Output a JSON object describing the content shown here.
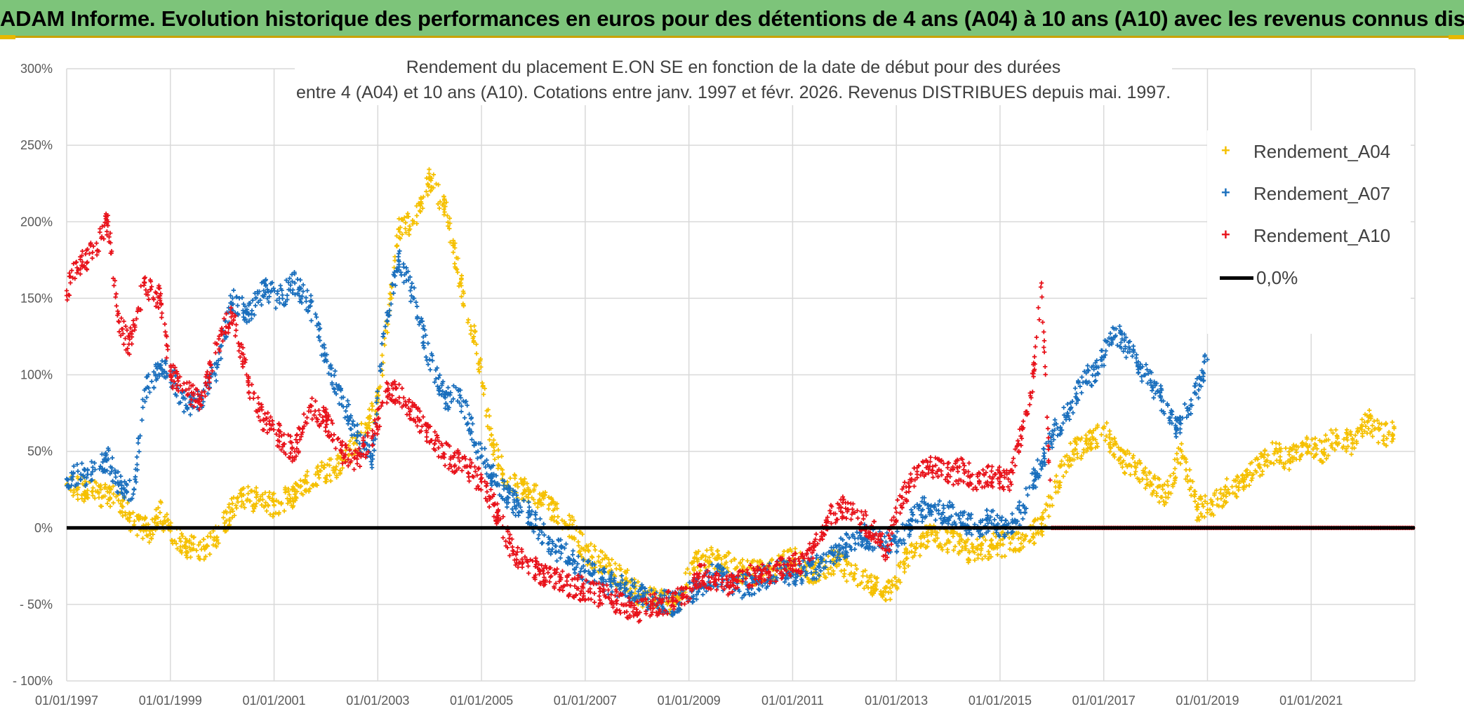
{
  "header": {
    "title": "ADAM Informe. Evolution historique des performances en euros pour des détentions de 4 ans (A04) à 10 ans (A10) avec les revenus connus distribués"
  },
  "colors": {
    "banner": "#7dc47a",
    "a04": "#f5c000",
    "a07": "#1a6fbd",
    "a10": "#e8121a",
    "zero": "#000000",
    "grid": "#d9d9d9"
  },
  "chart_data": {
    "type": "scatter",
    "title_line1": "Rendement du placement E.ON SE en fonction de la date de début pour des durées",
    "title_line2": "entre 4 (A04) et 10 ans (A10). Cotations entre janv. 1997 et févr. 2026. Revenus DISTRIBUES depuis mai. 1997.",
    "xlabel": "",
    "ylabel": "",
    "x_range": [
      1997.0,
      2023.0
    ],
    "ylim": [
      -100,
      300
    ],
    "y_ticks": [
      300,
      250,
      200,
      150,
      100,
      50,
      0,
      -50,
      -100
    ],
    "y_tick_labels": [
      "300%",
      "250%",
      "200%",
      "150%",
      "100%",
      "50%",
      "0%",
      "- 50%",
      "- 100%"
    ],
    "x_ticks": [
      1997,
      1999,
      2001,
      2003,
      2005,
      2007,
      2009,
      2011,
      2013,
      2015,
      2017,
      2019,
      2021
    ],
    "x_tick_labels": [
      "01/01/1997",
      "01/01/1999",
      "01/01/2001",
      "01/01/2003",
      "01/01/2005",
      "01/01/2007",
      "01/01/2009",
      "01/01/2011",
      "01/01/2013",
      "01/01/2015",
      "01/01/2017",
      "01/01/2019",
      "01/01/2021"
    ],
    "legend_position": "right",
    "series": [
      {
        "name": "Rendement_A04",
        "x": [
          1997.0,
          1997.5,
          1998.0,
          1998.3,
          1998.6,
          1998.8,
          1999.0,
          1999.3,
          1999.6,
          1999.9,
          2000.3,
          2000.7,
          2001.0,
          2001.4,
          2001.8,
          2002.2,
          2002.6,
          2003.0,
          2003.4,
          2003.7,
          2004.0,
          2004.3,
          2004.6,
          2004.9,
          2005.2,
          2005.5,
          2005.9,
          2006.3,
          2006.7,
          2007.0,
          2007.4,
          2007.8,
          2008.1,
          2008.5,
          2008.8,
          2009.1,
          2009.5,
          2010.0,
          2010.5,
          2011.0,
          2011.4,
          2011.8,
          2012.2,
          2012.6,
          2012.9,
          2013.2,
          2013.6,
          2014.0,
          2014.4,
          2014.8,
          2015.2,
          2015.5,
          2015.8,
          2016.1,
          2016.4,
          2016.7,
          2017.0,
          2017.3,
          2017.6,
          2017.9,
          2018.2,
          2018.5,
          2018.8,
          2019.1,
          2019.4,
          2019.7,
          2020.0,
          2020.3,
          2020.6,
          2020.9,
          2021.2,
          2021.5,
          2021.8,
          2022.1,
          2022.4,
          2022.6
        ],
        "y": [
          28,
          24,
          18,
          2,
          -2,
          10,
          -2,
          -12,
          -14,
          -6,
          20,
          18,
          15,
          22,
          35,
          40,
          55,
          82,
          195,
          200,
          228,
          210,
          160,
          120,
          55,
          30,
          25,
          15,
          2,
          -15,
          -25,
          -35,
          -45,
          -48,
          -50,
          -22,
          -20,
          -28,
          -30,
          -20,
          -30,
          -22,
          -30,
          -38,
          -42,
          -20,
          -5,
          -8,
          -15,
          -12,
          -10,
          -5,
          0,
          30,
          50,
          55,
          65,
          45,
          40,
          30,
          20,
          50,
          12,
          15,
          25,
          30,
          40,
          50,
          45,
          55,
          50,
          60,
          55,
          70,
          60,
          65
        ],
        "color": "#f5c000",
        "marker": "+"
      },
      {
        "name": "Rendement_A07",
        "x": [
          1997.0,
          1997.4,
          1997.8,
          1998.0,
          1998.3,
          1998.5,
          1998.8,
          1999.0,
          1999.3,
          1999.6,
          1999.9,
          2000.2,
          2000.5,
          2000.8,
          2001.1,
          2001.4,
          2001.7,
          2002.0,
          2002.3,
          2002.6,
          2002.9,
          2003.1,
          2003.4,
          2003.7,
          2004.0,
          2004.3,
          2004.6,
          2004.9,
          2005.2,
          2005.5,
          2005.9,
          2006.3,
          2006.7,
          2007.0,
          2007.4,
          2007.8,
          2008.1,
          2008.5,
          2008.8,
          2009.1,
          2009.5,
          2009.9,
          2010.3,
          2010.7,
          2011.1,
          2011.5,
          2011.9,
          2012.3,
          2012.7,
          2013.0,
          2013.3,
          2013.6,
          2013.9,
          2014.2,
          2014.5,
          2014.8,
          2015.1,
          2015.4,
          2015.7,
          2016.0,
          2016.3,
          2016.6,
          2016.9,
          2017.2,
          2017.5,
          2017.8,
          2018.1,
          2018.4,
          2018.7,
          2019.0
        ],
        "y": [
          32,
          35,
          45,
          28,
          25,
          90,
          105,
          100,
          80,
          85,
          105,
          150,
          140,
          155,
          150,
          160,
          145,
          110,
          85,
          60,
          45,
          125,
          175,
          150,
          110,
          85,
          85,
          55,
          35,
          20,
          10,
          -10,
          -20,
          -28,
          -35,
          -40,
          -45,
          -48,
          -50,
          -40,
          -30,
          -40,
          -35,
          -28,
          -30,
          -25,
          -15,
          -5,
          -8,
          -10,
          5,
          15,
          10,
          8,
          0,
          5,
          0,
          10,
          35,
          60,
          75,
          95,
          105,
          130,
          115,
          100,
          85,
          65,
          80,
          110
        ],
        "color": "#1a6fbd",
        "marker": "+"
      },
      {
        "name": "Rendement_A10",
        "x": [
          1997.0,
          1997.2,
          1997.5,
          1997.8,
          1998.0,
          1998.2,
          1998.5,
          1998.8,
          1999.0,
          1999.3,
          1999.6,
          1999.9,
          2000.2,
          2000.5,
          2000.8,
          2001.1,
          2001.4,
          2001.7,
          2002.0,
          2002.3,
          2002.6,
          2002.9,
          2003.2,
          2003.5,
          2003.8,
          2004.1,
          2004.4,
          2004.7,
          2005.0,
          2005.3,
          2005.6,
          2005.9,
          2006.2,
          2006.5,
          2006.8,
          2007.1,
          2007.4,
          2007.7,
          2008.0,
          2008.3,
          2008.6,
          2008.9,
          2009.2,
          2009.5,
          2009.8,
          2010.1,
          2010.4,
          2010.7,
          2011.0,
          2011.3,
          2011.6,
          2011.9,
          2012.2,
          2012.5,
          2012.8,
          2013.1,
          2013.4,
          2013.7,
          2014.0,
          2014.3,
          2014.6,
          2014.9,
          2015.2,
          2015.4,
          2015.6,
          2015.8,
          2016.0
        ],
        "y": [
          155,
          170,
          180,
          200,
          135,
          120,
          160,
          150,
          100,
          90,
          80,
          120,
          140,
          95,
          70,
          60,
          50,
          80,
          70,
          50,
          45,
          60,
          90,
          85,
          70,
          55,
          45,
          40,
          30,
          10,
          -15,
          -25,
          -30,
          -35,
          -38,
          -42,
          -45,
          -50,
          -55,
          -50,
          -48,
          -45,
          -30,
          -35,
          -38,
          -33,
          -30,
          -28,
          -25,
          -20,
          0,
          15,
          10,
          0,
          -15,
          20,
          35,
          40,
          35,
          38,
          30,
          35,
          30,
          60,
          85,
          160,
          0
        ],
        "color": "#e8121a",
        "marker": "+"
      },
      {
        "name": "0,0%",
        "x": [
          1997.0,
          2023.0
        ],
        "y": [
          0,
          0
        ],
        "color": "#000000",
        "marker": "line"
      }
    ]
  }
}
